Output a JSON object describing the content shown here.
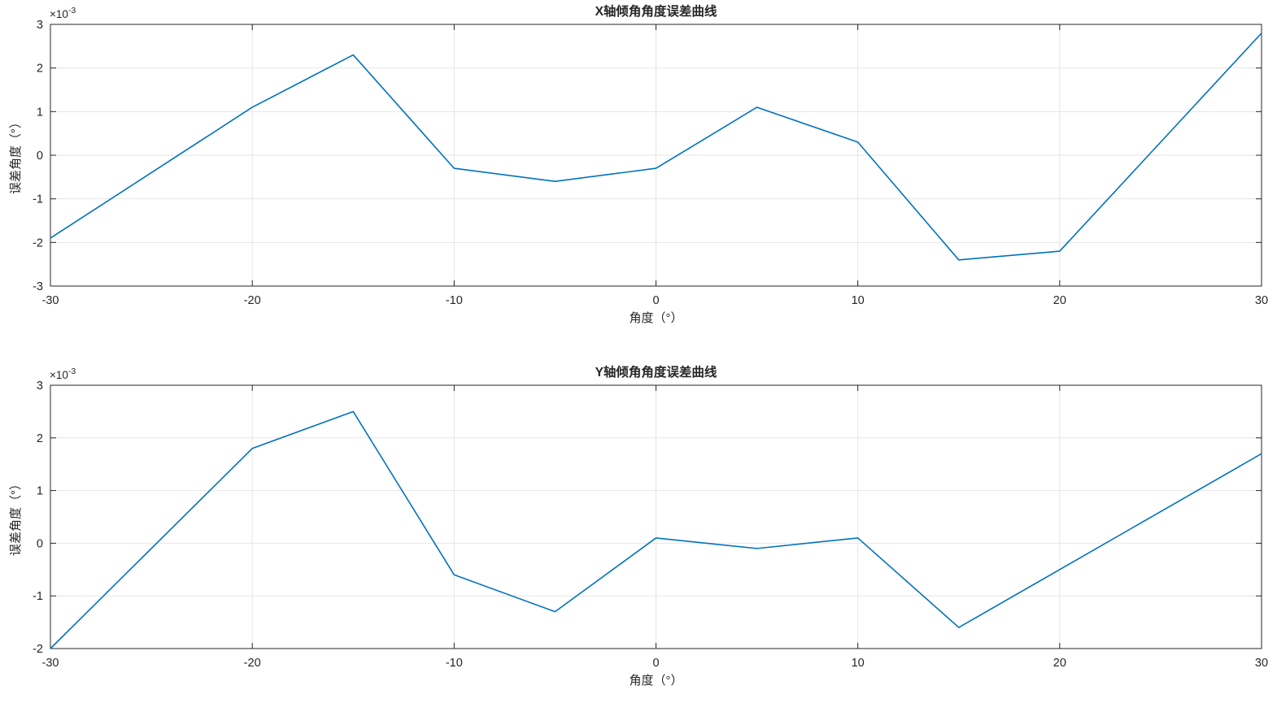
{
  "figure": {
    "background": "#ffffff",
    "axis_color": "#262626",
    "grid_color": "#e6e6e6",
    "tick_label_color": "#3d3d3d"
  },
  "chart_data": [
    {
      "type": "line",
      "title": "X轴倾角角度误差曲线",
      "xlabel": "角度（°）",
      "ylabel": "误差角度（°）",
      "y_exponent": {
        "base": "×10",
        "power": "-3"
      },
      "x": [
        -30,
        -20,
        -15,
        -10,
        -5,
        0,
        5,
        10,
        15,
        20,
        30
      ],
      "y_times_1e3": [
        -1.9,
        1.1,
        2.3,
        -0.3,
        -0.6,
        -0.3,
        1.1,
        0.3,
        -2.4,
        -2.2,
        2.8
      ],
      "xlim": [
        -30,
        30
      ],
      "ylim_times_1e3": [
        -3,
        3
      ],
      "xticks": [
        -30,
        -20,
        -10,
        0,
        10,
        20,
        30
      ],
      "yticks_times_1e3": [
        -3,
        -2,
        -1,
        0,
        1,
        2,
        3
      ],
      "grid": true,
      "legend": null,
      "line_color": "#0072BD"
    },
    {
      "type": "line",
      "title": "Y轴倾角角度误差曲线",
      "xlabel": "角度（°）",
      "ylabel": "误差角度（°）",
      "y_exponent": {
        "base": "×10",
        "power": "-3"
      },
      "x": [
        -30,
        -20,
        -15,
        -10,
        -5,
        0,
        5,
        10,
        15,
        30
      ],
      "y_times_1e3": [
        -2.0,
        1.8,
        2.5,
        -0.6,
        -1.3,
        0.1,
        -0.1,
        0.1,
        -1.6,
        1.7
      ],
      "xlim": [
        -30,
        30
      ],
      "ylim_times_1e3": [
        -2,
        3
      ],
      "xticks": [
        -30,
        -20,
        -10,
        0,
        10,
        20,
        30
      ],
      "yticks_times_1e3": [
        -2,
        -1,
        0,
        1,
        2,
        3
      ],
      "grid": true,
      "legend": null,
      "line_color": "#0072BD"
    }
  ]
}
